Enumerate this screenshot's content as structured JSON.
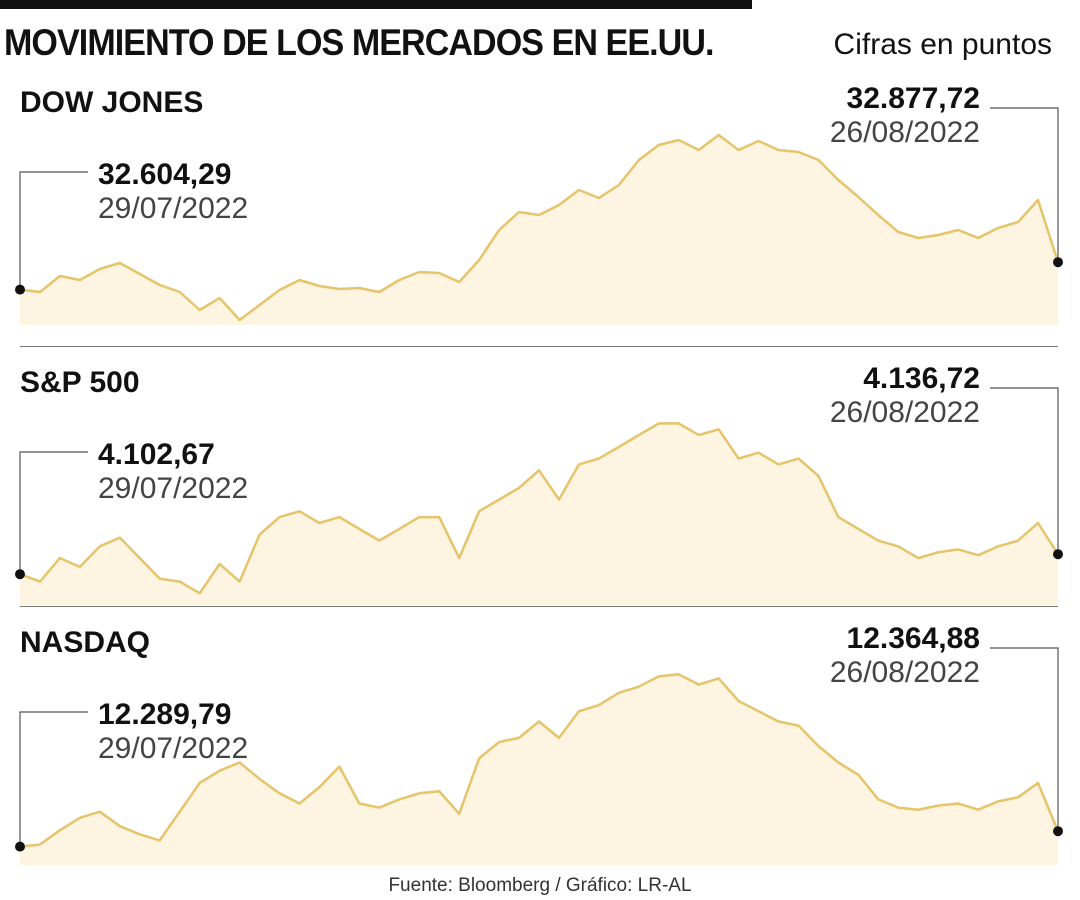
{
  "header": {
    "title": "MOVIMIENTO DE LOS MERCADOS EN EE.UU.",
    "units": "Cifras en puntos"
  },
  "source": "Fuente: Bloomberg / Gráfico: LR-AL",
  "colors": {
    "line": "#e6c46a",
    "fill": "#fdf4e2",
    "marker": "#111111",
    "connector": "#555555"
  },
  "chart_data": [
    {
      "type": "area",
      "title": "DOW JONES",
      "start": {
        "value": "32.604,29",
        "date": "29/07/2022"
      },
      "end": {
        "value": "32.877,72",
        "date": "26/08/2022"
      },
      "y": [
        32604.29,
        32580,
        32740,
        32700,
        32810,
        32870,
        32760,
        32650,
        32580,
        32400,
        32520,
        32300,
        32450,
        32600,
        32700,
        32640,
        32610,
        32620,
        32580,
        32700,
        32780,
        32770,
        32680,
        32900,
        33200,
        33380,
        33350,
        33450,
        33600,
        33520,
        33650,
        33900,
        34050,
        34100,
        34000,
        34150,
        34000,
        34090,
        34000,
        33980,
        33900,
        33700,
        33530,
        33350,
        33180,
        33120,
        33150,
        33200,
        33120,
        33220,
        33280,
        33500,
        32877.72
      ],
      "ylim": [
        32250,
        34300
      ]
    },
    {
      "type": "area",
      "title": "S&P 500",
      "start": {
        "value": "4.102,67",
        "date": "29/07/2022"
      },
      "end": {
        "value": "4.136,72",
        "date": "26/08/2022"
      },
      "y": [
        4102.67,
        4090,
        4130,
        4115,
        4150,
        4165,
        4130,
        4095,
        4090,
        4070,
        4120,
        4090,
        4170,
        4200,
        4210,
        4190,
        4200,
        4180,
        4160,
        4180,
        4200,
        4200,
        4130,
        4210,
        4230,
        4250,
        4280,
        4230,
        4290,
        4300,
        4320,
        4340,
        4360,
        4360,
        4340,
        4350,
        4300,
        4310,
        4290,
        4300,
        4270,
        4200,
        4180,
        4160,
        4150,
        4130,
        4140,
        4145,
        4135,
        4150,
        4160,
        4190,
        4136.72
      ],
      "ylim": [
        4050,
        4400
      ]
    },
    {
      "type": "area",
      "title": "NASDAQ",
      "start": {
        "value": "12.289,79",
        "date": "29/07/2022"
      },
      "end": {
        "value": "12.364,88",
        "date": "26/08/2022"
      },
      "y": [
        12289.79,
        12300,
        12370,
        12430,
        12460,
        12390,
        12350,
        12320,
        12460,
        12600,
        12660,
        12700,
        12620,
        12550,
        12500,
        12580,
        12680,
        12500,
        12480,
        12520,
        12550,
        12560,
        12450,
        12720,
        12800,
        12820,
        12900,
        12820,
        12950,
        12980,
        13040,
        13070,
        13120,
        13130,
        13080,
        13110,
        13000,
        12950,
        12900,
        12880,
        12780,
        12700,
        12640,
        12520,
        12480,
        12470,
        12490,
        12500,
        12470,
        12510,
        12530,
        12600,
        12364.88
      ],
      "ylim": [
        12200,
        13200
      ]
    }
  ]
}
